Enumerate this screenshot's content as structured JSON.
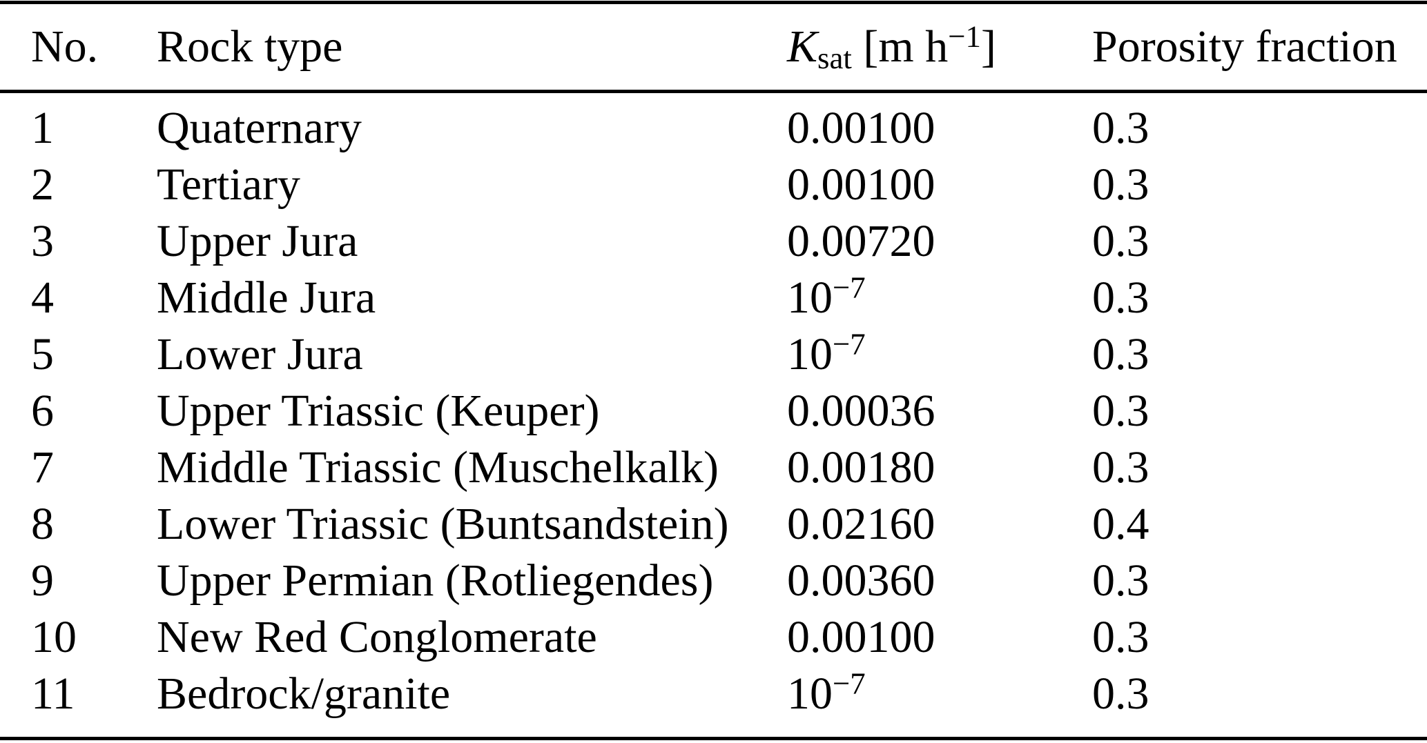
{
  "table": {
    "columns": {
      "no": "No.",
      "rock_type": "Rock type",
      "ksat_symbol": "K",
      "ksat_subscript": "sat",
      "ksat_unit_pre": " [m h",
      "ksat_unit_sup": "−1",
      "ksat_unit_post": "]",
      "porosity": "Porosity fraction"
    },
    "rows": [
      {
        "no": "1",
        "rock_type": "Quaternary",
        "ksat_base": "0.00100",
        "ksat_sup": "",
        "porosity": "0.3"
      },
      {
        "no": "2",
        "rock_type": "Tertiary",
        "ksat_base": "0.00100",
        "ksat_sup": "",
        "porosity": "0.3"
      },
      {
        "no": "3",
        "rock_type": "Upper Jura",
        "ksat_base": "0.00720",
        "ksat_sup": "",
        "porosity": "0.3"
      },
      {
        "no": "4",
        "rock_type": "Middle Jura",
        "ksat_base": "10",
        "ksat_sup": "−7",
        "porosity": "0.3"
      },
      {
        "no": "5",
        "rock_type": "Lower Jura",
        "ksat_base": "10",
        "ksat_sup": "−7",
        "porosity": "0.3"
      },
      {
        "no": "6",
        "rock_type": "Upper Triassic (Keuper)",
        "ksat_base": "0.00036",
        "ksat_sup": "",
        "porosity": "0.3"
      },
      {
        "no": "7",
        "rock_type": "Middle Triassic (Muschelkalk)",
        "ksat_base": "0.00180",
        "ksat_sup": "",
        "porosity": "0.3"
      },
      {
        "no": "8",
        "rock_type": "Lower Triassic (Buntsandstein)",
        "ksat_base": "0.02160",
        "ksat_sup": "",
        "porosity": "0.4"
      },
      {
        "no": "9",
        "rock_type": "Upper Permian (Rotliegendes)",
        "ksat_base": "0.00360",
        "ksat_sup": "",
        "porosity": "0.3"
      },
      {
        "no": "10",
        "rock_type": "New Red Conglomerate",
        "ksat_base": "0.00100",
        "ksat_sup": "",
        "porosity": "0.3"
      },
      {
        "no": "11",
        "rock_type": "Bedrock/granite",
        "ksat_base": "10",
        "ksat_sup": "−7",
        "porosity": "0.3"
      }
    ]
  },
  "colors": {
    "text": "#000000",
    "background": "#ffffff",
    "rule": "#000000"
  }
}
